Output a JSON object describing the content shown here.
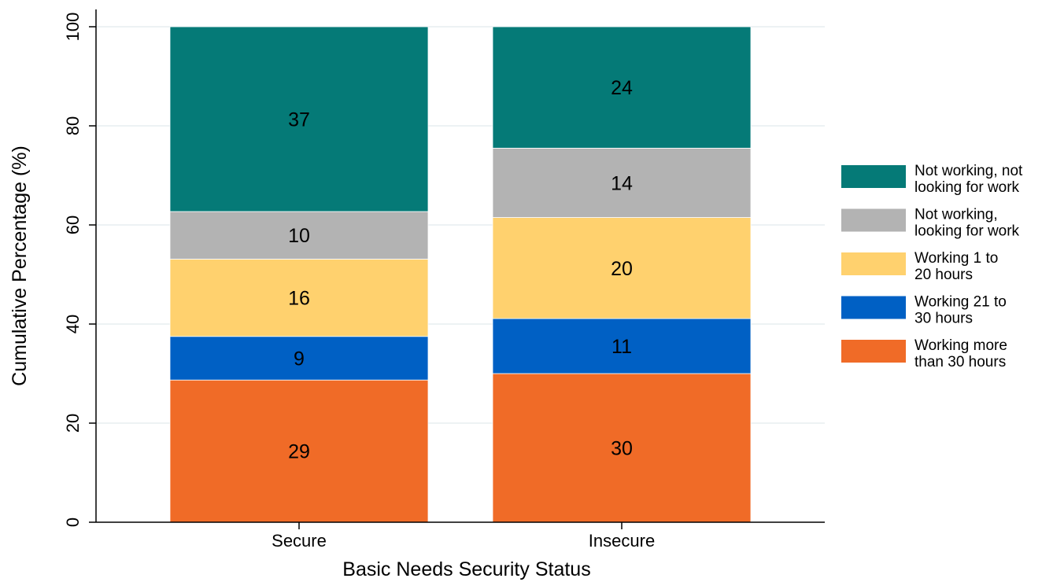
{
  "chart_data": {
    "type": "bar",
    "stacked": true,
    "title": "",
    "xlabel": "Basic Needs Security Status",
    "ylabel": "Cumulative Percentage (%)",
    "ylim": [
      0,
      100
    ],
    "yticks": [
      0,
      20,
      40,
      60,
      80,
      100
    ],
    "grid": true,
    "legend_position": "right",
    "categories": [
      "Secure",
      "Insecure"
    ],
    "series": [
      {
        "name_lines": [
          "Working more",
          "than 30 hours"
        ],
        "color": "#F06B27",
        "values": [
          28.7,
          30.0
        ],
        "labels": [
          "29",
          "30"
        ]
      },
      {
        "name_lines": [
          "Working 21 to",
          "30 hours"
        ],
        "color": "#0060C4",
        "values": [
          8.8,
          11.1
        ],
        "labels": [
          "9",
          "11"
        ]
      },
      {
        "name_lines": [
          "Working 1 to",
          "20 hours"
        ],
        "color": "#FFD16E",
        "values": [
          15.6,
          20.4
        ],
        "labels": [
          "16",
          "20"
        ]
      },
      {
        "name_lines": [
          "Not working,",
          "looking for work"
        ],
        "color": "#B3B3B3",
        "values": [
          9.6,
          14.0
        ],
        "labels": [
          "10",
          "14"
        ]
      },
      {
        "name_lines": [
          "Not working, not",
          "looking for work"
        ],
        "color": "#057A77",
        "values": [
          37.3,
          24.5
        ],
        "labels": [
          "37",
          "24"
        ]
      }
    ]
  }
}
